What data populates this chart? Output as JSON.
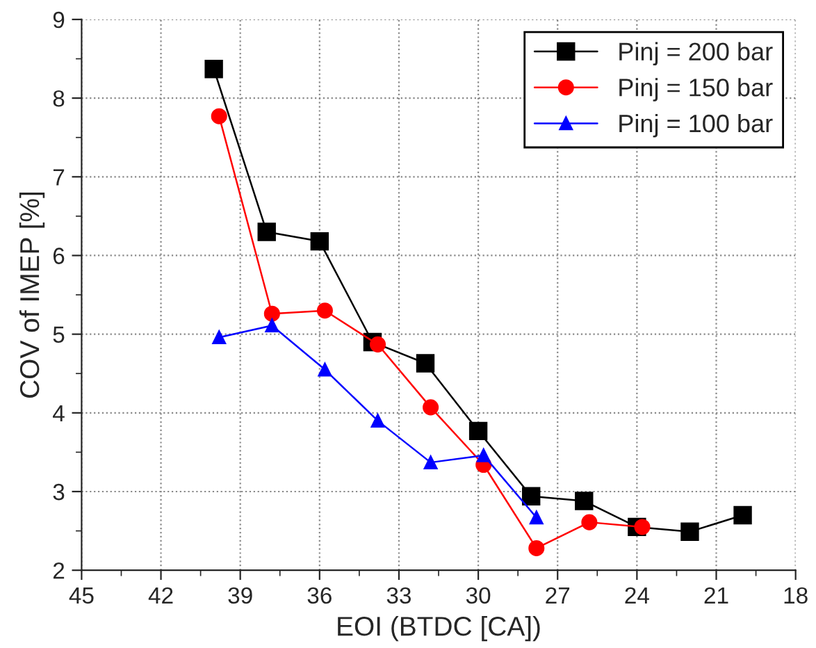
{
  "chart_data": {
    "type": "line",
    "xlabel": "EOI (BTDC [CA])",
    "ylabel": "COV of IMEP [%]",
    "xlim": [
      45,
      18
    ],
    "xticks": [
      45,
      42,
      39,
      36,
      33,
      30,
      27,
      24,
      21,
      18
    ],
    "ylim": [
      2,
      9
    ],
    "yticks": [
      2,
      3,
      4,
      5,
      6,
      7,
      8,
      9
    ],
    "grid": true,
    "legend": "top right",
    "series": [
      {
        "name": "Pinj = 200 bar",
        "color": "#000000",
        "marker": "square",
        "x": [
          40,
          38,
          36,
          34,
          32,
          30,
          28,
          26,
          24,
          22,
          20
        ],
        "values": [
          8.37,
          6.3,
          6.18,
          4.9,
          4.63,
          3.77,
          2.94,
          2.88,
          2.55,
          2.49,
          2.7
        ]
      },
      {
        "name": "Pinj = 150 bar",
        "color": "#ff0000",
        "marker": "circle",
        "x": [
          39.8,
          37.8,
          35.8,
          33.8,
          31.8,
          29.8,
          27.8,
          25.8,
          23.8
        ],
        "values": [
          7.77,
          5.26,
          5.3,
          4.87,
          4.07,
          3.34,
          2.28,
          2.61,
          2.55
        ]
      },
      {
        "name": "Pinj = 100 bar",
        "color": "#0000ff",
        "marker": "triangle",
        "x": [
          39.8,
          37.8,
          35.8,
          33.8,
          31.8,
          29.8,
          27.8
        ],
        "values": [
          4.96,
          5.11,
          4.55,
          3.9,
          3.37,
          3.46,
          2.67
        ]
      }
    ]
  }
}
